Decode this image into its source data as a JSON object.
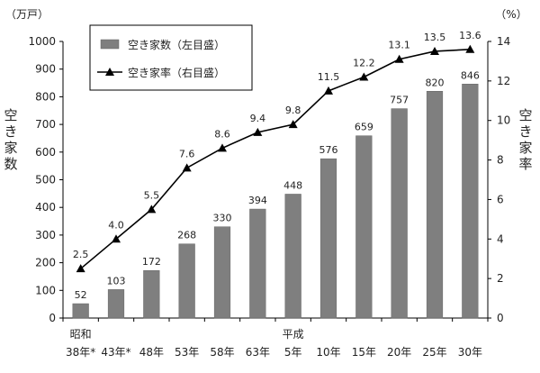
{
  "chart_data": {
    "type": "bar+line",
    "categories": [
      "38年*",
      "43年*",
      "48年",
      "53年",
      "58年",
      "63年",
      "5年",
      "10年",
      "15年",
      "20年",
      "25年",
      "30年"
    ],
    "era_labels": [
      {
        "category_index": 0,
        "text": "昭和"
      },
      {
        "category_index": 6,
        "text": "平成"
      }
    ],
    "left_unit": "（万戸）",
    "right_unit": "（%）",
    "left_axis_title": "空き家数",
    "right_axis_title": "空き家率",
    "left_ylim": [
      0,
      1000
    ],
    "right_ylim": [
      0,
      14
    ],
    "left_ticks": [
      0,
      100,
      200,
      300,
      400,
      500,
      600,
      700,
      800,
      900,
      1000
    ],
    "right_ticks": [
      0,
      2,
      4,
      6,
      8,
      10,
      12,
      14
    ],
    "series": [
      {
        "name": "空き家数（左目盛）",
        "type": "bar",
        "axis": "left",
        "values": [
          52,
          103,
          172,
          268,
          330,
          394,
          448,
          576,
          659,
          757,
          820,
          846
        ]
      },
      {
        "name": "空き家率（右目盛）",
        "type": "line",
        "axis": "right",
        "values": [
          2.5,
          4.0,
          5.5,
          7.6,
          8.6,
          9.4,
          9.8,
          11.5,
          12.2,
          13.1,
          13.5,
          13.6
        ]
      }
    ],
    "legend_position": "top-left",
    "grid": false,
    "colors": {
      "bar": "#7f7f7f",
      "line": "#000000",
      "axis": "#000000"
    }
  }
}
